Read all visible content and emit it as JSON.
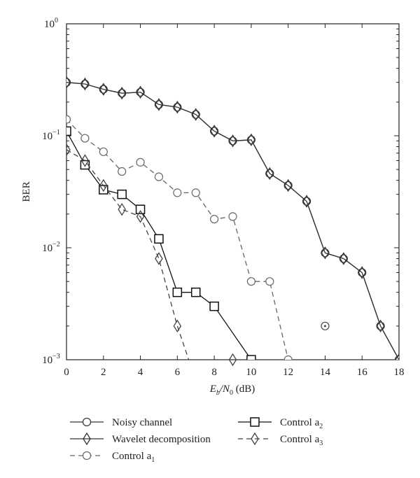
{
  "chart_data": {
    "type": "line",
    "title": "",
    "xlabel": "E_b/N_0 (dB)",
    "xlabel_parts": {
      "E": "E",
      "b": "b",
      "slash": "/N",
      "zero": "0",
      "unit": " (dB)"
    },
    "ylabel": "BER",
    "xlim": [
      0,
      18
    ],
    "ylim": [
      0.001,
      1
    ],
    "yscale": "log",
    "xticks": [
      0,
      2,
      4,
      6,
      8,
      10,
      12,
      14,
      16,
      18
    ],
    "yticks": [
      {
        "base": "10",
        "exp": "0",
        "value": 1
      },
      {
        "base": "10",
        "exp": "−1",
        "value": 0.1
      },
      {
        "base": "10",
        "exp": "−2",
        "value": 0.01
      },
      {
        "base": "10",
        "exp": "−3",
        "value": 0.001
      }
    ],
    "legend_position": "bottom",
    "series": [
      {
        "name": "Noisy channel",
        "marker": "circle",
        "dash": false,
        "color": "#333333",
        "x": [
          0,
          1,
          2,
          3,
          4,
          5,
          6,
          7,
          8,
          9,
          10,
          11,
          12,
          13,
          14,
          15,
          16,
          17,
          18
        ],
        "values": [
          0.3,
          0.29,
          0.26,
          0.24,
          0.245,
          0.19,
          0.18,
          0.155,
          0.11,
          0.09,
          0.092,
          0.046,
          0.036,
          0.026,
          0.009,
          0.008,
          0.006,
          0.002,
          0.001
        ]
      },
      {
        "name": "Wavelet decomposition",
        "marker": "diamond",
        "dash": false,
        "color": "#333333",
        "x": [
          0,
          1,
          2,
          3,
          4,
          5,
          6,
          7,
          8,
          9,
          10,
          11,
          12,
          13,
          14,
          15,
          16,
          17,
          18
        ],
        "values": [
          0.3,
          0.29,
          0.26,
          0.24,
          0.245,
          0.19,
          0.18,
          0.155,
          0.11,
          0.09,
          0.092,
          0.046,
          0.036,
          0.026,
          0.009,
          0.008,
          0.006,
          0.002,
          0.001
        ]
      },
      {
        "name": "Control a",
        "sub": "1",
        "marker": "circle",
        "dash": true,
        "color": "#666666",
        "x": [
          0,
          1,
          2,
          3,
          4,
          5,
          6,
          7,
          8,
          9,
          10,
          11,
          12
        ],
        "values": [
          0.14,
          0.095,
          0.072,
          0.048,
          0.058,
          0.043,
          0.031,
          0.031,
          0.018,
          0.019,
          0.005,
          0.005,
          0.001
        ]
      },
      {
        "name": "Control a",
        "sub": "2",
        "marker": "square",
        "dash": false,
        "color": "#111111",
        "x": [
          0,
          1,
          2,
          3,
          4,
          5,
          6,
          7,
          8,
          10
        ],
        "values": [
          0.11,
          0.055,
          0.033,
          0.03,
          0.022,
          0.012,
          0.004,
          0.004,
          0.003,
          0.001
        ]
      },
      {
        "name": "Control a",
        "sub": "3",
        "marker": "diamond",
        "dash": true,
        "color": "#444444",
        "x": [
          0,
          1,
          2,
          3,
          4,
          5,
          6,
          7
        ],
        "values": [
          0.075,
          0.06,
          0.036,
          0.022,
          0.019,
          0.008,
          0.002,
          0.00065
        ]
      }
    ],
    "extra_points": [
      {
        "x": 14,
        "y": 0.002,
        "marker": "circle-dot"
      },
      {
        "x": 9,
        "y": 0.001,
        "marker": "diamond"
      }
    ]
  }
}
